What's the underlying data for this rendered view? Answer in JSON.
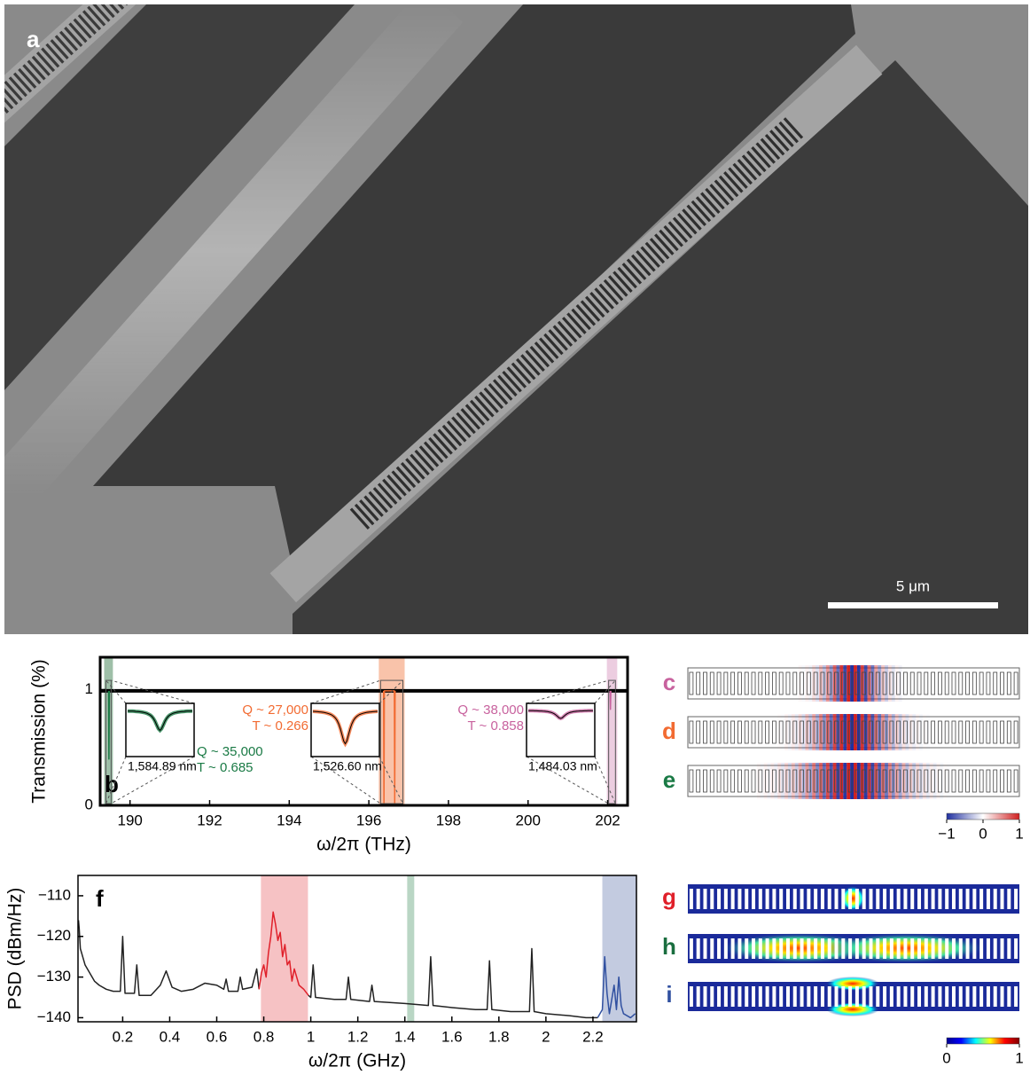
{
  "figure": {
    "panel_a": {
      "label": "a",
      "scale_bar": "5 μm"
    },
    "mode_panels_cde": {
      "labels": [
        {
          "text": "c",
          "color": "#c8629e"
        },
        {
          "text": "d",
          "color": "#f26b32"
        },
        {
          "text": "e",
          "color": "#1a7a45"
        }
      ],
      "colorbar": {
        "lim": [
          -1,
          1
        ],
        "ticks": [
          {
            "value": -1,
            "label": "−1"
          },
          0,
          1
        ]
      }
    },
    "mode_panels_ghi": {
      "labels": [
        {
          "text": "g",
          "color": "#e0202a"
        },
        {
          "text": "h",
          "color": "#1a6e3f"
        },
        {
          "text": "i",
          "color": "#3050a0"
        }
      ],
      "colorbar": {
        "lim": [
          0,
          1
        ],
        "ticks": [
          0,
          1
        ]
      }
    }
  },
  "chart_data": [
    {
      "type": "line",
      "panel_label": "b",
      "xlabel": "ω/2π (THz)",
      "ylabel": "Transmission (%)",
      "xlim": [
        189.25,
        202.5
      ],
      "ylim": [
        0,
        1.28
      ],
      "xticks": [
        190,
        192,
        194,
        196,
        198,
        200,
        202
      ],
      "yticks": [
        0,
        1
      ],
      "highlights": [
        {
          "range": [
            189.35,
            189.57
          ],
          "color": "#9ebfa8"
        },
        {
          "range": [
            196.25,
            196.9
          ],
          "color": "#f9c3aa"
        },
        {
          "range": [
            201.98,
            202.24
          ],
          "color": "#eccde0"
        }
      ],
      "series": [
        {
          "color": "#000000",
          "x": [
            189.25,
            202.5
          ],
          "values": [
            0.99,
            0.99
          ]
        },
        {
          "color": "#1a7a45",
          "x": [
            189.46,
            189.47,
            189.48
          ],
          "values": [
            0.99,
            0.4,
            0.99
          ]
        },
        {
          "color": "#f26b32",
          "x": [
            196.37,
            196.38,
            196.39,
            196.64,
            196.65,
            196.66
          ],
          "values": [
            0.99,
            0.02,
            0.99,
            0.99,
            0.02,
            0.99
          ]
        },
        {
          "color": "#c8629e",
          "x": [
            202.06,
            202.07,
            202.08
          ],
          "values": [
            0.99,
            0.83,
            0.99
          ]
        }
      ],
      "insets": [
        {
          "color": "#1a7a45",
          "q": "Q ~ 35,000",
          "t": "T ~ 0.685",
          "wavelength": "1,584.89 nm"
        },
        {
          "color": "#f26b32",
          "q": "Q ~ 27,000",
          "t": "T ~ 0.266",
          "wavelength": "1,526.60 nm"
        },
        {
          "color": "#c8629e",
          "q": "Q ~ 38,000",
          "t": "T ~ 0.858",
          "wavelength": "1,484.03 nm"
        }
      ]
    },
    {
      "type": "line",
      "panel_label": "f",
      "xlabel": "ω/2π (GHz)",
      "ylabel": "PSD (dBm/Hz)",
      "xlim": [
        0.01,
        2.385
      ],
      "ylim": [
        -141,
        -105
      ],
      "xticks": [
        0.2,
        0.4,
        0.6,
        0.8,
        1,
        1.2,
        1.4,
        1.6,
        1.8,
        2,
        2.2
      ],
      "yticks": [
        {
          "value": -110,
          "label": "−110"
        },
        {
          "value": -120,
          "label": "−120"
        },
        {
          "value": -130,
          "label": "−130"
        },
        {
          "value": -140,
          "label": "−140"
        }
      ],
      "highlights": [
        {
          "range": [
            0.788,
            0.988
          ],
          "color": "#f6c2c4"
        },
        {
          "range": [
            1.41,
            1.44
          ],
          "color": "#b9d6c4"
        },
        {
          "range": [
            2.24,
            2.385
          ],
          "color": "#c3cbe0"
        }
      ],
      "series": [
        {
          "color": "#222222",
          "x": [
            0.012,
            0.015,
            0.02,
            0.03,
            0.04,
            0.06,
            0.08,
            0.1,
            0.13,
            0.16,
            0.19,
            0.2,
            0.21,
            0.25,
            0.26,
            0.27,
            0.32,
            0.36,
            0.385,
            0.41,
            0.45,
            0.5,
            0.55,
            0.6,
            0.63,
            0.64,
            0.65,
            0.69,
            0.7,
            0.71,
            0.75,
            0.77,
            0.78,
            0.88,
            0.99,
            1.0,
            1.01,
            1.02,
            1.1,
            1.15,
            1.16,
            1.17,
            1.25,
            1.26,
            1.27,
            1.4,
            1.5,
            1.51,
            1.52,
            1.6,
            1.7,
            1.75,
            1.76,
            1.77,
            1.85,
            1.93,
            1.94,
            1.95,
            2.0,
            2.1,
            2.17,
            2.22
          ],
          "values": [
            -116,
            -118,
            -123,
            -125,
            -127,
            -129,
            -131,
            -132,
            -133,
            -133.5,
            -133.5,
            -120,
            -134,
            -134,
            -127,
            -134.5,
            -134.5,
            -132,
            -128.5,
            -132.5,
            -133.5,
            -133,
            -131.5,
            -132,
            -133,
            -130.5,
            -133.5,
            -133.5,
            -130,
            -133,
            -132.5,
            -128,
            -133,
            null,
            -134.5,
            -135,
            -127,
            -135,
            -135.5,
            -135.5,
            -130,
            -135.5,
            -136,
            -132,
            -136,
            -136.5,
            -137,
            -125,
            -137,
            -137.5,
            -138,
            -138,
            -126,
            -138,
            -138.5,
            -138.5,
            -123,
            -138.5,
            -139,
            -139.5,
            -140,
            -140
          ]
        },
        {
          "color": "#e0202a",
          "x": [
            0.78,
            0.79,
            0.8,
            0.81,
            0.82,
            0.83,
            0.84,
            0.85,
            0.86,
            0.87,
            0.88,
            0.89,
            0.9,
            0.91,
            0.92,
            0.93,
            0.95,
            0.97,
            0.99
          ],
          "values": [
            -133,
            -129,
            -127,
            -130,
            -124,
            -120,
            -114,
            -117,
            -121,
            -119,
            -125,
            -122,
            -127,
            -126,
            -131,
            -128,
            -132,
            -133,
            -134.5
          ]
        },
        {
          "color": "#3050a0",
          "x": [
            2.22,
            2.24,
            2.25,
            2.26,
            2.27,
            2.29,
            2.3,
            2.31,
            2.32,
            2.33,
            2.36,
            2.38
          ],
          "values": [
            -140,
            -138,
            -125,
            -134,
            -139,
            -132,
            -138,
            -130,
            -137,
            -139,
            -140,
            -139
          ]
        }
      ]
    }
  ]
}
